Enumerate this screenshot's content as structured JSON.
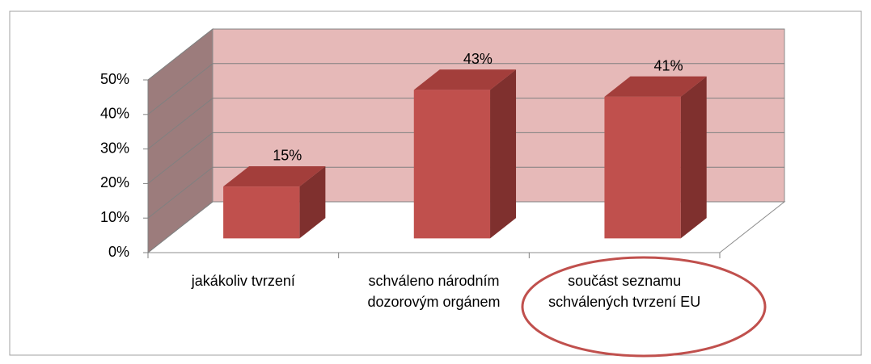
{
  "chart_data": {
    "type": "bar3d",
    "categories": [
      "jakákoliv tvrzení",
      "schváleno národním dozorovým orgánem",
      "součást seznamu schválených tvrzení EU"
    ],
    "values": [
      15,
      43,
      41
    ],
    "value_labels": [
      "15%",
      "43%",
      "41%"
    ],
    "color": "#c0504d",
    "ylim": [
      0,
      50
    ],
    "yticks": [
      {
        "value": 0,
        "label": "0%"
      },
      {
        "value": 10,
        "label": "10%"
      },
      {
        "value": 20,
        "label": "20%"
      },
      {
        "value": 30,
        "label": "30%"
      },
      {
        "value": 40,
        "label": "40%"
      },
      {
        "value": 50,
        "label": "50%"
      }
    ],
    "grid": true
  }
}
